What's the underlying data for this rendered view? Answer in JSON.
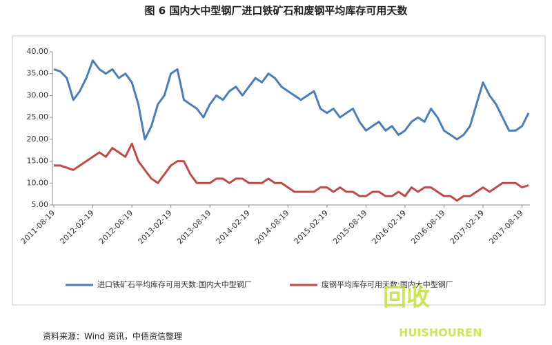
{
  "chart_data": {
    "type": "line",
    "title": "图 6 国内大中型钢厂进口铁矿石和废钢平均库存可用天数",
    "source": "资料来源：Wind 资讯，中债资信整理",
    "watermark": [
      "回收",
      "HUISHOUREN"
    ],
    "categories": [
      "2011-08-19",
      null,
      null,
      null,
      null,
      null,
      "2012-02-19",
      null,
      null,
      null,
      null,
      null,
      "2012-08-19",
      null,
      null,
      null,
      null,
      null,
      "2013-02-19",
      null,
      null,
      null,
      null,
      null,
      "2013-08-19",
      null,
      null,
      null,
      null,
      null,
      "2014-02-19",
      null,
      null,
      null,
      null,
      null,
      "2014-08-19",
      null,
      null,
      null,
      null,
      null,
      "2015-02-19",
      null,
      null,
      null,
      null,
      null,
      "2015-08-19",
      null,
      null,
      null,
      null,
      null,
      "2016-02-19",
      null,
      null,
      null,
      null,
      null,
      "2016-08-19",
      null,
      null,
      null,
      null,
      null,
      "2017-02-19",
      null,
      null,
      null,
      null,
      null,
      "2017-08-19",
      null
    ],
    "series": [
      {
        "name": "进口铁矿石平均库存可用天数:国内大中型钢厂",
        "color": "#4a7ebb",
        "values": [
          36,
          35.5,
          34,
          29,
          31,
          34,
          38,
          36,
          35,
          36,
          34,
          35,
          33,
          28,
          20,
          23,
          28,
          30,
          35,
          36,
          29,
          28,
          27,
          25,
          28,
          30,
          29,
          31,
          32,
          30,
          32,
          34,
          33,
          35,
          34,
          32,
          31,
          30,
          29,
          30,
          31,
          27,
          26,
          27,
          25,
          26,
          27,
          24,
          22,
          23,
          24,
          22,
          23,
          21,
          22,
          24,
          25,
          24,
          27,
          25,
          22,
          21,
          20,
          21,
          23,
          28,
          33,
          30,
          28,
          25,
          22,
          22,
          23,
          26
        ]
      },
      {
        "name": "废钢平均库存可用天数:国内大中型钢厂",
        "color": "#be4b48",
        "values": [
          14,
          14,
          13.5,
          13,
          14,
          15,
          16,
          17,
          16,
          18,
          17,
          16,
          19,
          15,
          13,
          11,
          10,
          12,
          14,
          15,
          15,
          12,
          10,
          10,
          10,
          11,
          11,
          10,
          11,
          11,
          10,
          10,
          10,
          11,
          10,
          10,
          9,
          8,
          8,
          8,
          8,
          9,
          9,
          8,
          9,
          8,
          8,
          7,
          7,
          8,
          8,
          7,
          7,
          8,
          7,
          9,
          8,
          9,
          9,
          8,
          7,
          7,
          6,
          7,
          7,
          8,
          9,
          8,
          9,
          10,
          10,
          10,
          9,
          9.5
        ]
      }
    ],
    "ylim": [
      5,
      40
    ],
    "yticks": [
      {
        "value": 5,
        "label": "5.00"
      },
      {
        "value": 10,
        "label": "10.00"
      },
      {
        "value": 15,
        "label": "15.00"
      },
      {
        "value": 20,
        "label": "20.00"
      },
      {
        "value": 25,
        "label": "25.00"
      },
      {
        "value": 30,
        "label": "30.00"
      },
      {
        "value": 35,
        "label": "35.00"
      },
      {
        "value": 40,
        "label": "40.00"
      }
    ],
    "grid": false
  }
}
